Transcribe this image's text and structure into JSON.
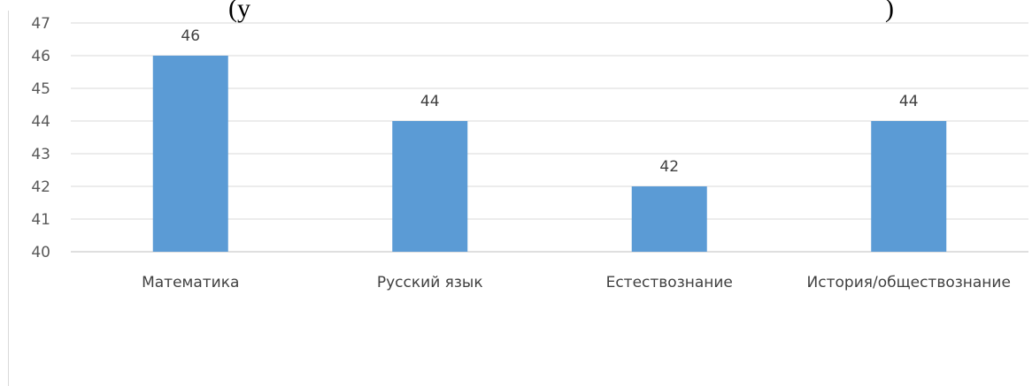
{
  "cutoff_title": {
    "left": "(у",
    "right": ")"
  },
  "colors": {
    "bar": "#5b9bd5",
    "grid": "#d9d9d9",
    "axis": "#bfbfbf",
    "border": "#d9d9d9"
  },
  "chart_data": {
    "type": "bar",
    "title": "",
    "xlabel": "",
    "ylabel": "",
    "categories": [
      "Математика",
      "Русский язык",
      "Естествознание",
      "История/обществознание"
    ],
    "values": [
      46,
      44,
      42,
      44
    ],
    "data_labels": [
      "46",
      "44",
      "42",
      "44"
    ],
    "ylim": [
      40,
      47
    ],
    "yticks": [
      "40",
      "41",
      "42",
      "43",
      "44",
      "45",
      "46",
      "47"
    ],
    "grid": true,
    "legend": "none"
  }
}
